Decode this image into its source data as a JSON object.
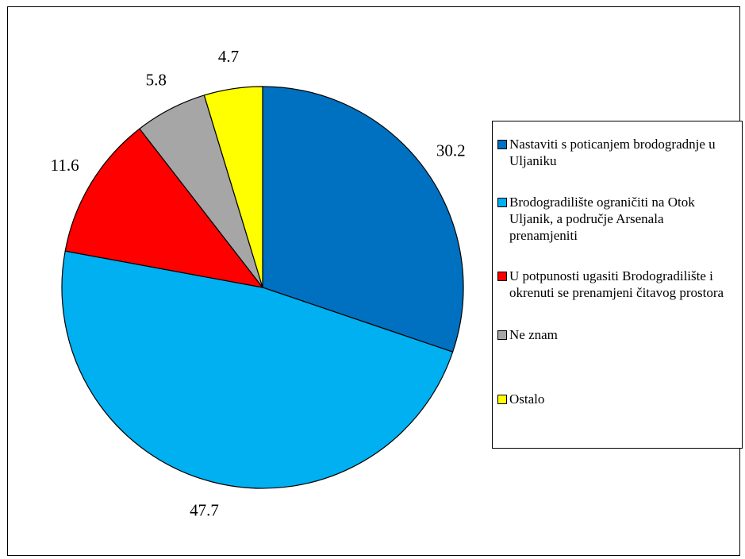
{
  "chart_data": {
    "type": "pie",
    "title": "",
    "slices": [
      {
        "label": "Nastaviti s poticanjem brodogradnje u Uljaniku",
        "value": 30.2,
        "display": "30.2",
        "color": "#0070C0"
      },
      {
        "label": "Brodogradilište ograničiti na Otok Uljanik, a područje Arsenala prenamjeniti",
        "value": 47.7,
        "display": "47.7",
        "color": "#00B0F0"
      },
      {
        "label": "U potpunosti ugasiti Brodogradilište i okrenuti se prenamjeni čitavog prostora",
        "value": 11.6,
        "display": "11.6",
        "color": "#FF0000"
      },
      {
        "label": "Ne znam",
        "value": 5.8,
        "display": "5.8",
        "color": "#A6A6A6"
      },
      {
        "label": "Ostalo",
        "value": 4.7,
        "display": "4.7",
        "color": "#FFFF00"
      }
    ],
    "start_angle": "12 o'clock",
    "direction": "clockwise",
    "legend_position": "right"
  }
}
